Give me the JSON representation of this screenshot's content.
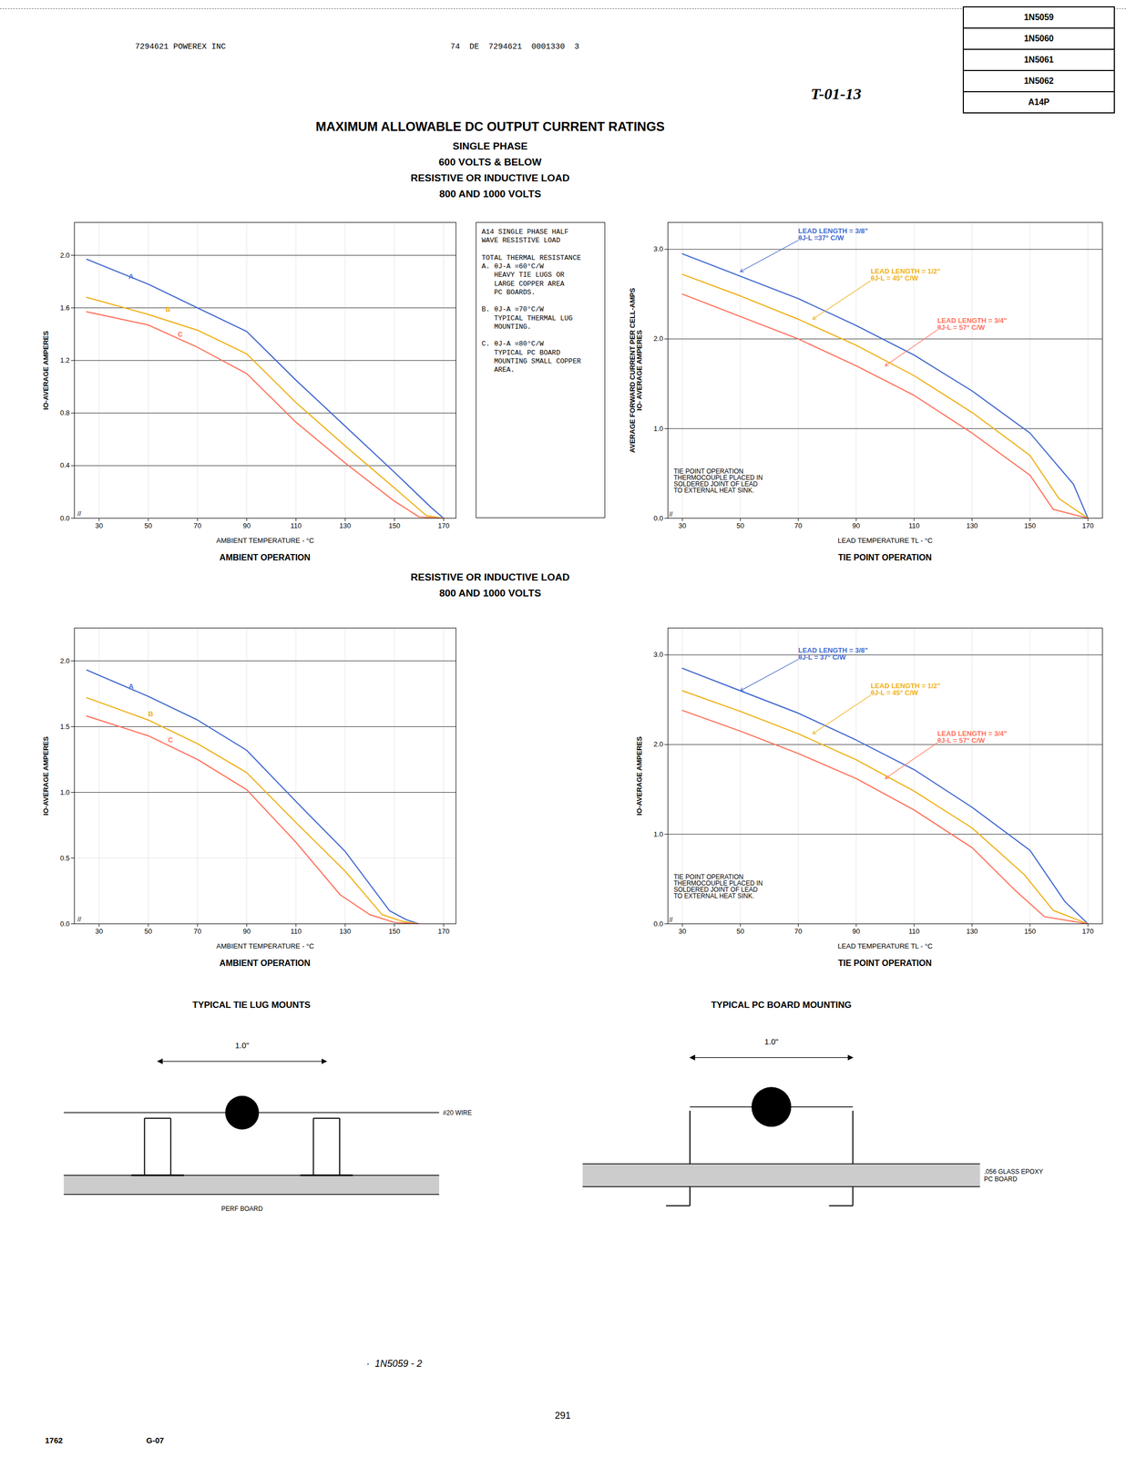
{
  "page": {
    "header_left": "7294621 POWEREX INC",
    "header_right": "74  DE  7294621  0001330  3",
    "handwritten": "T-01-13",
    "part_numbers": [
      "1N5059",
      "1N5060",
      "1N5061",
      "1N5062",
      "A14P"
    ],
    "title": "MAXIMUM ALLOWABLE DC OUTPUT CURRENT RATINGS",
    "subtitles": [
      "SINGLE PHASE",
      "600 VOLTS & BELOW"
    ],
    "section_titles": [
      "RESISTIVE OR INDUCTIVE LOAD",
      "800 AND 1000 VOLTS"
    ],
    "diagrams": [
      {
        "title": "TYPICAL TIE LUG MOUNTS",
        "dimension": "1.0\"",
        "wire_label": "#20 WIRE",
        "board_label": "PERF BOARD"
      },
      {
        "title": "TYPICAL PC BOARD MOUNTING",
        "dimension": "1.0\"",
        "board_label": ".056 GLASS EPOXY\nPC BOARD"
      }
    ],
    "page_code": "·  1N5059 - 2",
    "page_num": "291",
    "footer_left": "1762",
    "footer_right": "G-07"
  },
  "chart_data": [
    {
      "type": "line",
      "title": "AMBIENT OPERATION",
      "xlabel": "AMBIENT TEMPERATURE - °C",
      "ylabel": "IO-AVERAGE AMPERES",
      "xlim": [
        20,
        175
      ],
      "ylim": [
        0,
        2.25
      ],
      "xticks": [
        30,
        50,
        70,
        90,
        110,
        130,
        150,
        170
      ],
      "yticks": [
        {
          "value": 0,
          "label": "0.0"
        },
        0.4,
        0.8,
        1.2,
        1.6,
        {
          "value": 2.0,
          "label": "2.0"
        }
      ],
      "grid": true,
      "hlines": [
        2.0,
        1.6,
        1.2,
        0.8,
        0.4
      ],
      "series": [
        {
          "name": "A",
          "x": [
            25,
            50,
            70,
            90,
            110,
            130,
            150,
            165,
            170
          ],
          "values": [
            1.97,
            1.78,
            1.6,
            1.42,
            1.05,
            0.7,
            0.35,
            0.08,
            0.0
          ],
          "label_x": 42,
          "label_y": 1.82
        },
        {
          "name": "B",
          "x": [
            25,
            50,
            70,
            90,
            110,
            130,
            150,
            163,
            170
          ],
          "values": [
            1.68,
            1.55,
            1.43,
            1.25,
            0.88,
            0.55,
            0.23,
            0.02,
            0.0
          ],
          "label_x": 57,
          "label_y": 1.57
        },
        {
          "name": "C",
          "x": [
            25,
            50,
            70,
            90,
            110,
            130,
            150,
            160,
            170
          ],
          "values": [
            1.57,
            1.47,
            1.3,
            1.1,
            0.73,
            0.42,
            0.13,
            0.01,
            0.0
          ],
          "label_x": 62,
          "label_y": 1.38
        }
      ],
      "annotations": [
        {
          "text": "//",
          "x": 22,
          "y": 0.02
        }
      ],
      "note": "A14 SINGLE PHASE HALF\nWAVE RESISTIVE LOAD\n\nTOTAL THERMAL RESISTANCE\nA. θJ-A =60°C/W\n   HEAVY TIE LUGS OR\n   LARGE COPPER AREA\n   PC BOARDS.\n\nB. θJ-A =70°C/W\n   TYPICAL THERMAL LUG\n   MOUNTING.\n\nC. θJ-A =80°C/W\n   TYPICAL PC BOARD\n   MOUNTING SMALL COPPER\n   AREA."
    },
    {
      "type": "line",
      "title": "TIE POINT OPERATION",
      "xlabel": "LEAD TEMPERATURE TL - °C",
      "ylabel": "AVERAGE FORWARD CURRENT PER CELL-AMPS\nIO- AVERAGE AMPERES",
      "xlim": [
        25,
        175
      ],
      "ylim": [
        0,
        3.3
      ],
      "xticks": [
        30,
        50,
        70,
        90,
        110,
        130,
        150,
        170
      ],
      "yticks": [
        {
          "value": 0,
          "label": "0.0"
        },
        {
          "value": 1.0,
          "label": "1.0"
        },
        {
          "value": 2.0,
          "label": "2.0"
        },
        {
          "value": 3.0,
          "label": "3.0"
        }
      ],
      "grid": true,
      "hlines": [
        3.0,
        2.0,
        1.0
      ],
      "series": [
        {
          "name": "LEAD LENGTH = 3/8\"\nθJ-L =37° C/W",
          "x": [
            30,
            50,
            70,
            90,
            110,
            130,
            150,
            165,
            170
          ],
          "values": [
            2.95,
            2.7,
            2.45,
            2.15,
            1.82,
            1.42,
            0.95,
            0.38,
            0.0
          ],
          "label_x": 70,
          "label_y": 3.1,
          "arrow_x": 50,
          "arrow_y": 2.75
        },
        {
          "name": "LEAD LENGTH = 1/2\"\nθJ-L = 45° C/W",
          "x": [
            30,
            50,
            70,
            90,
            110,
            130,
            150,
            160,
            170
          ],
          "values": [
            2.72,
            2.48,
            2.22,
            1.93,
            1.59,
            1.18,
            0.7,
            0.22,
            0.0
          ],
          "label_x": 95,
          "label_y": 2.65,
          "arrow_x": 75,
          "arrow_y": 2.22
        },
        {
          "name": "LEAD LENGTH = 3/4\"\nθJ-L = 57° C/W",
          "x": [
            30,
            50,
            70,
            90,
            110,
            130,
            150,
            158,
            170
          ],
          "values": [
            2.5,
            2.25,
            2.0,
            1.7,
            1.37,
            0.95,
            0.48,
            0.1,
            0.0
          ],
          "label_x": 118,
          "label_y": 2.1,
          "arrow_x": 100,
          "arrow_y": 1.7
        }
      ],
      "annotations": [
        {
          "text": "TIE POINT OPERATION\nTHERMOCOUPLE PLACED IN\nSOLDERED JOINT OF LEAD\nTO EXTERNAL HEAT SINK.",
          "x": 27,
          "y": 0.55
        },
        {
          "text": "//",
          "x": 26,
          "y": 0.02
        }
      ]
    },
    {
      "type": "line",
      "title": "AMBIENT OPERATION",
      "xlabel": "AMBIENT TEMPERATURE - °C",
      "ylabel": "IO-AVERAGE AMPERES",
      "xlim": [
        20,
        175
      ],
      "ylim": [
        0,
        2.25
      ],
      "xticks": [
        30,
        50,
        70,
        90,
        110,
        130,
        150,
        170
      ],
      "yticks": [
        {
          "value": 0,
          "label": "0.0"
        },
        0.5,
        {
          "value": 1.0,
          "label": "1.0"
        },
        1.5,
        {
          "value": 2.0,
          "label": "2.0"
        }
      ],
      "grid": true,
      "hlines": [
        1.0,
        1.5,
        2.0
      ],
      "series": [
        {
          "name": "A",
          "x": [
            25,
            50,
            70,
            90,
            110,
            130,
            148,
            155,
            160
          ],
          "values": [
            1.93,
            1.73,
            1.55,
            1.32,
            0.93,
            0.55,
            0.1,
            0.03,
            0.0
          ],
          "label_x": 42,
          "label_y": 1.79
        },
        {
          "name": "B",
          "x": [
            25,
            50,
            70,
            90,
            110,
            130,
            145,
            153,
            160
          ],
          "values": [
            1.72,
            1.55,
            1.37,
            1.15,
            0.77,
            0.4,
            0.07,
            0.02,
            0.0
          ],
          "label_x": 50,
          "label_y": 1.58
        },
        {
          "name": "C",
          "x": [
            25,
            50,
            70,
            90,
            110,
            128,
            140,
            150,
            160
          ],
          "values": [
            1.58,
            1.43,
            1.25,
            1.02,
            0.62,
            0.22,
            0.07,
            0.01,
            0.0
          ],
          "label_x": 58,
          "label_y": 1.38
        }
      ],
      "annotations": [
        {
          "text": "//",
          "x": 22,
          "y": 0.02
        }
      ]
    },
    {
      "type": "line",
      "title": "TIE POINT OPERATION",
      "xlabel": "LEAD TEMPERATURE TL - °C",
      "ylabel": "IO-AVERAGE AMPERES",
      "xlim": [
        25,
        175
      ],
      "ylim": [
        0,
        3.3
      ],
      "xticks": [
        30,
        50,
        70,
        90,
        110,
        130,
        150,
        170
      ],
      "yticks": [
        {
          "value": 0,
          "label": "0.0"
        },
        {
          "value": 1.0,
          "label": "1.0"
        },
        {
          "value": 2.0,
          "label": "2.0"
        },
        {
          "value": 3.0,
          "label": "3.0"
        }
      ],
      "grid": true,
      "hlines": [
        3.0,
        2.0,
        1.0
      ],
      "series": [
        {
          "name": "LEAD LENGTH = 3/8\"\nθJ-L = 37° C/W",
          "x": [
            30,
            50,
            70,
            90,
            110,
            130,
            150,
            162,
            170
          ],
          "values": [
            2.85,
            2.6,
            2.35,
            2.05,
            1.72,
            1.3,
            0.82,
            0.25,
            0.0
          ],
          "label_x": 70,
          "label_y": 2.95,
          "arrow_x": 50,
          "arrow_y": 2.6
        },
        {
          "name": "LEAD LENGTH = 1/2\"\nθJ-L = 45° C/W",
          "x": [
            30,
            50,
            70,
            90,
            110,
            130,
            148,
            158,
            170
          ],
          "values": [
            2.6,
            2.37,
            2.12,
            1.83,
            1.48,
            1.07,
            0.55,
            0.15,
            0.0
          ],
          "label_x": 95,
          "label_y": 2.55,
          "arrow_x": 75,
          "arrow_y": 2.12
        },
        {
          "name": "LEAD LENGTH = 3/4\"\nθJ-L = 57° C/W",
          "x": [
            30,
            50,
            70,
            90,
            110,
            130,
            145,
            155,
            170
          ],
          "values": [
            2.38,
            2.15,
            1.9,
            1.62,
            1.27,
            0.85,
            0.37,
            0.08,
            0.0
          ],
          "label_x": 118,
          "label_y": 2.02,
          "arrow_x": 100,
          "arrow_y": 1.62
        }
      ],
      "annotations": [
        {
          "text": "TIE POINT OPERATION\nTHERMOCOUPLE PLACED IN\nSOLDERED JOINT OF LEAD\nTO EXTERNAL HEAT SINK.",
          "x": 27,
          "y": 0.55
        },
        {
          "text": "//",
          "x": 26,
          "y": 0.02
        }
      ]
    }
  ]
}
